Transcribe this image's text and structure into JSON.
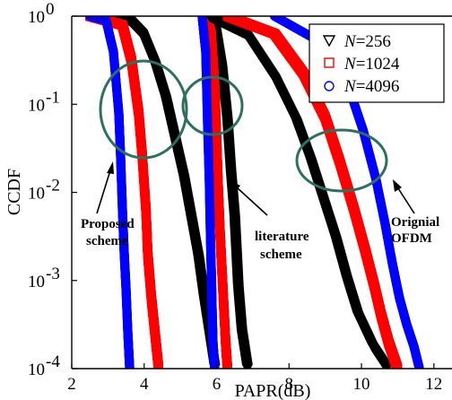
{
  "chart_data": {
    "type": "scatter",
    "title": "",
    "xlabel": "PAPR(dB)",
    "ylabel": "CCDF",
    "xlim": [
      2,
      12.5
    ],
    "ylim_log10": [
      -4,
      0
    ],
    "y_scale": "log",
    "x_ticks": [
      "2",
      "4",
      "6",
      "8",
      "10",
      "12"
    ],
    "y_ticks": [
      {
        "base": "10",
        "exp": "0"
      },
      {
        "base": "10",
        "exp": "-1"
      },
      {
        "base": "10",
        "exp": "-2"
      },
      {
        "base": "10",
        "exp": "-3"
      },
      {
        "base": "10",
        "exp": "-4"
      }
    ],
    "grid": false,
    "legend_position": "top-right",
    "legend": [
      {
        "prefix": "N",
        "text": "=256",
        "marker": "triangle-down",
        "color": "#000000"
      },
      {
        "prefix": "N",
        "text": "=1024",
        "marker": "square",
        "color": "#ff0000"
      },
      {
        "prefix": "N",
        "text": "=4096",
        "marker": "circle",
        "color": "#0000ff"
      }
    ],
    "annotations": {
      "proposed_line1": "Proposed",
      "proposed_line2": "scheme",
      "literature_line1": "literature",
      "literature_line2": "scheme",
      "original_line1": "Orignial",
      "original_line2": "OFDM"
    },
    "series": [
      {
        "name": "N=256",
        "group": "Proposed scheme",
        "marker": "triangle-down",
        "color": "#000000",
        "x": [
          2.5,
          3.6,
          3.95,
          4.3,
          4.6,
          4.85,
          5.1,
          5.3,
          5.5,
          5.65,
          5.8,
          5.95
        ],
        "log10_y": [
          0,
          -0.05,
          -0.2,
          -0.55,
          -0.95,
          -1.4,
          -1.85,
          -2.3,
          -2.75,
          -3.2,
          -3.6,
          -4
        ]
      },
      {
        "name": "N=1024",
        "group": "Proposed scheme",
        "marker": "square",
        "color": "#ff0000",
        "x": [
          2.5,
          3.4,
          3.65,
          3.85,
          3.95,
          4.05,
          4.1,
          4.2,
          4.3,
          4.4
        ],
        "log10_y": [
          0,
          -0.1,
          -0.5,
          -1.1,
          -1.6,
          -2.2,
          -2.7,
          -3.2,
          -3.6,
          -4
        ]
      },
      {
        "name": "N=4096",
        "group": "Proposed scheme",
        "marker": "circle",
        "color": "#0000ff",
        "x": [
          2.5,
          2.95,
          3.15,
          3.3,
          3.35,
          3.4,
          3.45,
          3.5,
          3.55,
          3.6
        ],
        "log10_y": [
          0,
          -0.05,
          -0.4,
          -1.1,
          -1.6,
          -2.2,
          -2.7,
          -3.1,
          -3.6,
          -4
        ]
      },
      {
        "name": "N=256",
        "group": "literature scheme",
        "marker": "triangle-down",
        "color": "#000000",
        "x": [
          5.7,
          5.95,
          6.15,
          6.3,
          6.4,
          6.5,
          6.55,
          6.6,
          6.7,
          6.85
        ],
        "log10_y": [
          0,
          -0.1,
          -0.6,
          -1.2,
          -1.8,
          -2.3,
          -2.7,
          -3.1,
          -3.6,
          -4
        ]
      },
      {
        "name": "N=1024",
        "group": "literature scheme",
        "marker": "square",
        "color": "#ff0000",
        "x": [
          5.7,
          5.85,
          5.95,
          6.0,
          6.05,
          6.1,
          6.15,
          6.2,
          6.25,
          6.3
        ],
        "log10_y": [
          0,
          -0.2,
          -0.8,
          -1.4,
          -2.0,
          -2.5,
          -2.9,
          -3.3,
          -3.7,
          -4
        ]
      },
      {
        "name": "N=4096",
        "group": "literature scheme",
        "marker": "circle",
        "color": "#0000ff",
        "x": [
          5.6,
          5.7,
          5.75,
          5.8,
          5.83,
          5.86,
          5.88,
          5.9,
          5.95
        ],
        "log10_y": [
          0,
          -0.4,
          -1.2,
          -1.9,
          -2.5,
          -3.0,
          -3.4,
          -3.7,
          -4
        ]
      },
      {
        "name": "N=256",
        "group": "Orignial OFDM",
        "marker": "triangle-down",
        "color": "#000000",
        "x": [
          5.8,
          6.8,
          7.6,
          8.2,
          8.6,
          8.95,
          9.3,
          9.6,
          9.9,
          10.3,
          10.7
        ],
        "log10_y": [
          0,
          -0.2,
          -0.7,
          -1.2,
          -1.65,
          -2.1,
          -2.55,
          -3.0,
          -3.4,
          -3.75,
          -4
        ]
      },
      {
        "name": "N=1024",
        "group": "Orignial OFDM",
        "marker": "square",
        "color": "#ff0000",
        "x": [
          6.3,
          7.6,
          8.4,
          9.0,
          9.4,
          9.8,
          10.1,
          10.35,
          10.55,
          10.75,
          11.0
        ],
        "log10_y": [
          0,
          -0.2,
          -0.65,
          -1.15,
          -1.65,
          -2.2,
          -2.65,
          -3.05,
          -3.4,
          -3.7,
          -4
        ]
      },
      {
        "name": "N=4096",
        "group": "Orignial OFDM",
        "marker": "circle",
        "color": "#0000ff",
        "x": [
          7.6,
          8.9,
          9.6,
          10.05,
          10.4,
          10.65,
          10.85,
          11.05,
          11.25,
          11.45,
          11.6
        ],
        "log10_y": [
          0,
          -0.3,
          -0.75,
          -1.3,
          -1.85,
          -2.35,
          -2.8,
          -3.2,
          -3.5,
          -3.75,
          -4
        ]
      }
    ]
  }
}
